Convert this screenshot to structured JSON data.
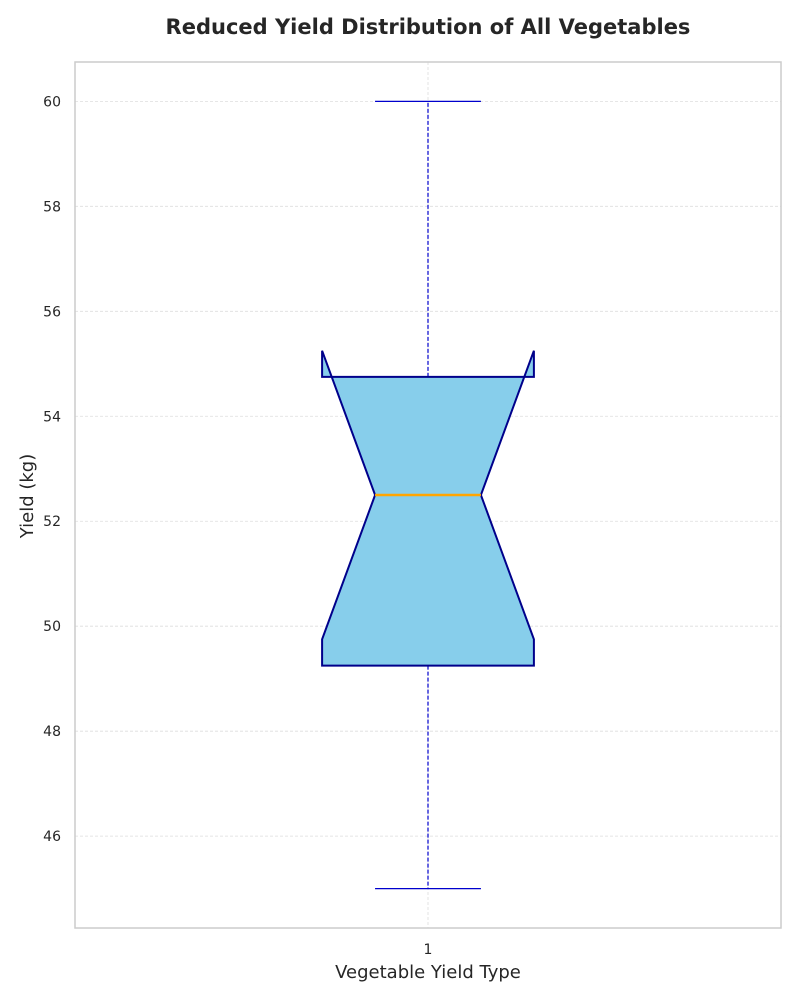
{
  "chart_data": {
    "type": "boxplot",
    "title": "Reduced Yield Distribution of All Vegetables",
    "xlabel": "Vegetable Yield Type",
    "ylabel": "Yield (kg)",
    "categories": [
      "1"
    ],
    "ylim": [
      44.25,
      60.75
    ],
    "yticks": [
      46,
      48,
      50,
      52,
      54,
      56,
      58,
      60
    ],
    "grid": true,
    "notched": true,
    "boxes": [
      {
        "category": "1",
        "whisker_low": 45,
        "q1": 49.25,
        "notch_low": 49.75,
        "median": 52.5,
        "notch_high": 55.25,
        "q3": 54.75,
        "whisker_high": 60
      }
    ],
    "colors": {
      "box_fill": "#87ceeb",
      "box_edge": "#00008b",
      "median": "#ffa500",
      "whisker": "#0000cd",
      "grid": "#dddddd",
      "frame": "#cccccc"
    }
  }
}
